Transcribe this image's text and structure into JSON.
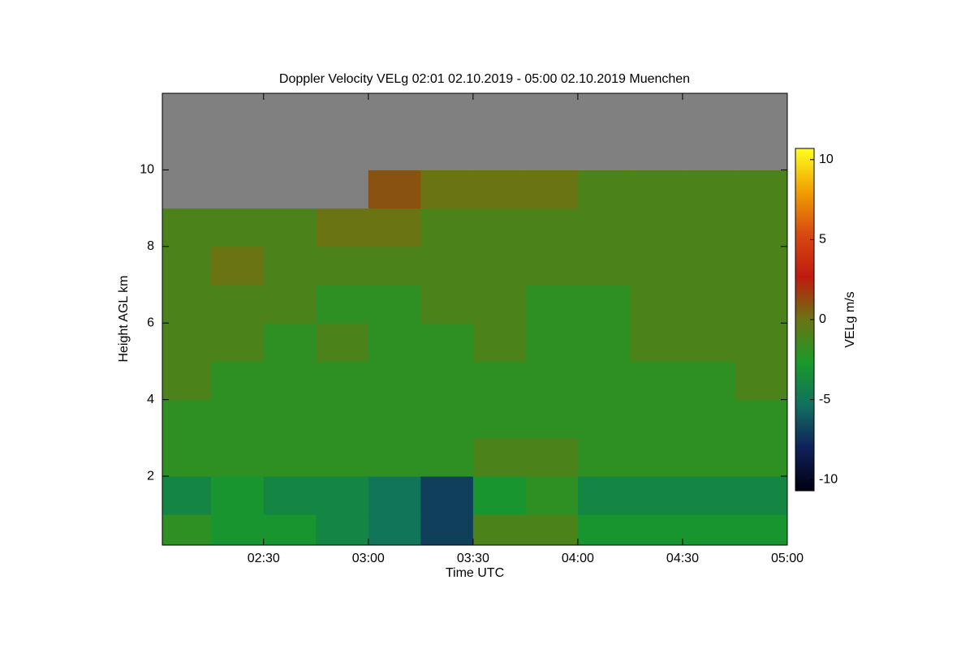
{
  "chart_data": {
    "type": "heatmap",
    "title": "Doppler Velocity VELg   02:01 02.10.2019 - 05:00 02.10.2019 Muenchen",
    "xlabel": "Time UTC",
    "ylabel": "Height AGL km",
    "colorbar_label": "VELg m/s",
    "xlim": [
      "02:01",
      "05:00"
    ],
    "xticks": [
      "02:30",
      "03:00",
      "03:30",
      "04:00",
      "04:30",
      "05:00"
    ],
    "ylim": [
      0.2,
      12
    ],
    "yticks": [
      2,
      4,
      6,
      8,
      10
    ],
    "clim": [
      -10.7,
      10.7
    ],
    "cticks": [
      10,
      5,
      0,
      -5,
      -10
    ],
    "colormap": [
      "#000010",
      "#10205a",
      "#107060",
      "#1a9a28",
      "#6a7412",
      "#c01a10",
      "#d84a10",
      "#f0a000",
      "#ffff20"
    ],
    "missing_color": "#808080",
    "x": [
      "02:01",
      "02:15",
      "02:30",
      "02:45",
      "03:00",
      "03:15",
      "03:30",
      "03:45",
      "04:00",
      "04:15",
      "04:30",
      "04:45",
      "05:00"
    ],
    "y": [
      0.2,
      1,
      2,
      3,
      4,
      5,
      6,
      7,
      8,
      9,
      10,
      11,
      12
    ],
    "z": [
      [
        -2,
        -3,
        -3,
        -4,
        -5,
        -7,
        -1,
        -1,
        -3,
        -3,
        -3,
        -3
      ],
      [
        -4,
        -3,
        -4,
        -4,
        -5,
        -7,
        -3,
        -2,
        -4,
        -4,
        -4,
        -4
      ],
      [
        -2,
        -2,
        -2,
        -2,
        -2,
        -2,
        -1,
        -1,
        -2,
        -2,
        -2,
        -2
      ],
      [
        -2,
        -2,
        -2,
        -2,
        -2,
        -2,
        -2,
        -2,
        -2,
        -2,
        -2,
        -2
      ],
      [
        -1,
        -2,
        -2,
        -2,
        -2,
        -2,
        -2,
        -2,
        -2,
        -2,
        -2,
        -1
      ],
      [
        -1,
        -1,
        -2,
        -1,
        -2,
        -2,
        -1,
        -2,
        -2,
        -1,
        -1,
        -1
      ],
      [
        -1,
        -1,
        -1,
        -2,
        -2,
        -1,
        -1,
        -2,
        -2,
        -1,
        -1,
        -1
      ],
      [
        -1,
        0,
        -1,
        -1,
        -1,
        -1,
        -1,
        -1,
        -1,
        -1,
        -1,
        -1
      ],
      [
        -1,
        -1,
        -1,
        0,
        0,
        -1,
        -1,
        -1,
        -1,
        -1,
        -1,
        -1
      ],
      [
        null,
        null,
        null,
        null,
        1,
        0,
        0,
        0,
        -1,
        -1,
        -1,
        -1
      ],
      [
        null,
        null,
        null,
        null,
        null,
        null,
        null,
        null,
        null,
        null,
        null,
        null
      ],
      [
        null,
        null,
        null,
        null,
        null,
        null,
        null,
        null,
        null,
        null,
        null,
        null
      ]
    ]
  }
}
